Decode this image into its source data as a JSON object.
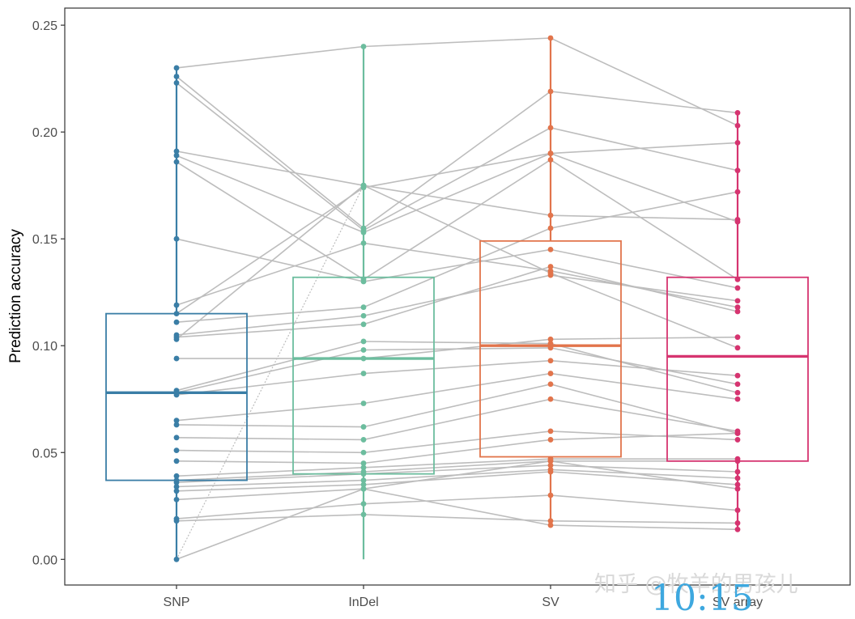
{
  "chart_data": {
    "type": "box",
    "xlabel": "",
    "ylabel": "Prediction accuracy",
    "ylim": [
      -0.012,
      0.258
    ],
    "yticks": [
      0.0,
      0.05,
      0.1,
      0.15,
      0.2,
      0.25
    ],
    "ytick_labels": [
      "0.00",
      "0.05",
      "0.10",
      "0.15",
      "0.20",
      "0.25"
    ],
    "grid": false,
    "legend": "none",
    "categories": [
      "SNP",
      "InDel",
      "SV",
      "SV array"
    ],
    "colors": [
      "#3a7ea6",
      "#6cbd9e",
      "#e2744b",
      "#d63470"
    ],
    "line_color": "#bdbdbd",
    "boxes": [
      {
        "q1": 0.037,
        "median": 0.078,
        "q3": 0.115,
        "whisker_low": 0.0,
        "whisker_high": 0.23
      },
      {
        "q1": 0.04,
        "median": 0.094,
        "q3": 0.132,
        "whisker_low": 0.0,
        "whisker_high": 0.24
      },
      {
        "q1": 0.048,
        "median": 0.1,
        "q3": 0.149,
        "whisker_low": 0.017,
        "whisker_high": 0.244
      },
      {
        "q1": 0.046,
        "median": 0.095,
        "q3": 0.132,
        "whisker_low": 0.014,
        "whisker_high": 0.209
      }
    ],
    "lines": [
      [
        0.23,
        0.24,
        0.244,
        0.203
      ],
      [
        0.226,
        0.155,
        0.219,
        0.209
      ],
      [
        0.223,
        0.154,
        0.202,
        0.182
      ],
      [
        0.191,
        0.175,
        0.161,
        0.159
      ],
      [
        0.189,
        0.153,
        0.19,
        0.158
      ],
      [
        0.186,
        0.131,
        0.187,
        0.131
      ],
      [
        0.15,
        0.13,
        0.145,
        0.127
      ],
      [
        0.119,
        0.148,
        0.135,
        0.118
      ],
      [
        0.115,
        0.174,
        0.19,
        0.195
      ],
      [
        0.111,
        0.118,
        0.155,
        0.172
      ],
      [
        0.105,
        0.114,
        0.133,
        0.121
      ],
      [
        0.104,
        0.11,
        0.137,
        0.116
      ],
      [
        0.103,
        0.175,
        0.134,
        0.099
      ],
      [
        0.094,
        0.094,
        0.103,
        0.104
      ],
      [
        0.079,
        0.102,
        0.101,
        0.078
      ],
      [
        0.078,
        0.098,
        0.099,
        0.082
      ],
      [
        0.077,
        0.087,
        0.093,
        0.086
      ],
      [
        0.065,
        0.073,
        0.087,
        0.075
      ],
      [
        0.063,
        0.062,
        0.082,
        0.059
      ],
      [
        0.057,
        0.056,
        0.075,
        0.06
      ],
      [
        0.051,
        0.05,
        0.06,
        0.056
      ],
      [
        0.046,
        0.045,
        0.056,
        0.059
      ],
      [
        0.039,
        0.043,
        0.047,
        0.047
      ],
      [
        0.037,
        0.041,
        0.046,
        0.046
      ],
      [
        0.036,
        0.04,
        0.044,
        0.041
      ],
      [
        0.034,
        0.037,
        0.042,
        0.038
      ],
      [
        0.032,
        0.035,
        0.041,
        0.035
      ],
      [
        0.028,
        0.033,
        0.046,
        0.033
      ],
      [
        0.019,
        0.026,
        0.03,
        0.023
      ],
      [
        0.018,
        0.021,
        0.018,
        0.017
      ],
      [
        0.0,
        0.033,
        0.016,
        0.014
      ]
    ],
    "cross_lines": [
      {
        "from": [
          0,
          0.0
        ],
        "to": [
          1,
          0.175
        ]
      }
    ]
  },
  "watermark": "知乎 @牧羊的男孩儿",
  "overlay_time": "10:15"
}
